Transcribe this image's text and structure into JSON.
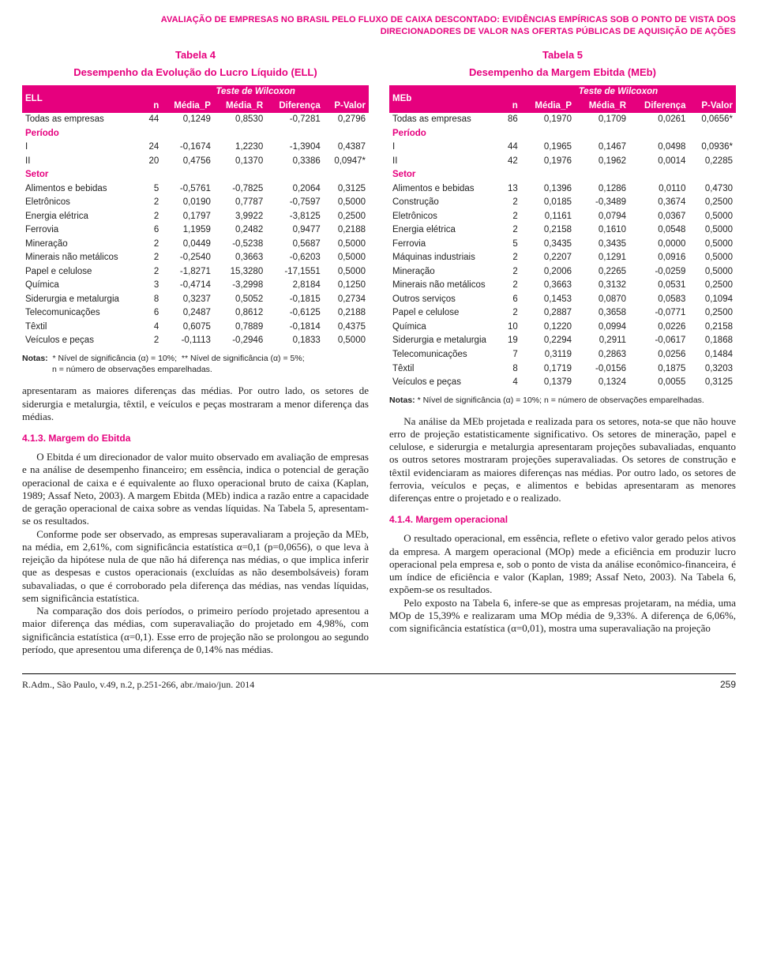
{
  "colors": {
    "accent": "#e6007e",
    "text": "#222",
    "bg": "#fff"
  },
  "header": {
    "line1": "AVALIAÇÃO DE EMPRESAS NO BRASIL PELO FLUXO DE CAIXA DESCONTADO: EVIDÊNCIAS EMPÍRICAS SOB O PONTO DE VISTA DOS",
    "line2": "DIRECIONADORES DE VALOR NAS OFERTAS PÚBLICAS DE AQUISIÇÃO DE AÇÕES"
  },
  "tab4": {
    "tabela": "Tabela 4",
    "title": "Desempenho da Evolução do Lucro Líquido (ELL)",
    "metric": "ELL",
    "wilcoxon": "Teste de Wilcoxon",
    "cols": {
      "n": "n",
      "mp": "Média_P",
      "mr": "Média_R",
      "dif": "Diferença",
      "pv": "P-Valor"
    },
    "rows": [
      {
        "label": "Todas as empresas",
        "n": "44",
        "mp": "0,1249",
        "mr": "0,8530",
        "dif": "-0,7281",
        "pv": "0,2796"
      },
      {
        "section": "Período"
      },
      {
        "label": "I",
        "n": "24",
        "mp": "-0,1674",
        "mr": "1,2230",
        "dif": "-1,3904",
        "pv": "0,4387"
      },
      {
        "label": "II",
        "n": "20",
        "mp": "0,4756",
        "mr": "0,1370",
        "dif": "0,3386",
        "pv": "0,0947*"
      },
      {
        "section": "Setor"
      },
      {
        "label": "Alimentos e bebidas",
        "n": "5",
        "mp": "-0,5761",
        "mr": "-0,7825",
        "dif": "0,2064",
        "pv": "0,3125"
      },
      {
        "label": "Eletrônicos",
        "n": "2",
        "mp": "0,0190",
        "mr": "0,7787",
        "dif": "-0,7597",
        "pv": "0,5000"
      },
      {
        "label": "Energia elétrica",
        "n": "2",
        "mp": "0,1797",
        "mr": "3,9922",
        "dif": "-3,8125",
        "pv": "0,2500"
      },
      {
        "label": "Ferrovia",
        "n": "6",
        "mp": "1,1959",
        "mr": "0,2482",
        "dif": "0,9477",
        "pv": "0,2188"
      },
      {
        "label": "Mineração",
        "n": "2",
        "mp": "0,0449",
        "mr": "-0,5238",
        "dif": "0,5687",
        "pv": "0,5000"
      },
      {
        "label": "Minerais não metálicos",
        "n": "2",
        "mp": "-0,2540",
        "mr": "0,3663",
        "dif": "-0,6203",
        "pv": "0,5000"
      },
      {
        "label": "Papel e celulose",
        "n": "2",
        "mp": "-1,8271",
        "mr": "15,3280",
        "dif": "-17,1551",
        "pv": "0,5000"
      },
      {
        "label": "Química",
        "n": "3",
        "mp": "-0,4714",
        "mr": "-3,2998",
        "dif": "2,8184",
        "pv": "0,1250"
      },
      {
        "label": "Siderurgia e metalurgia",
        "n": "8",
        "mp": "0,3237",
        "mr": "0,5052",
        "dif": "-0,1815",
        "pv": "0,2734"
      },
      {
        "label": "Telecomunicações",
        "n": "6",
        "mp": "0,2487",
        "mr": "0,8612",
        "dif": "-0,6125",
        "pv": "0,2188"
      },
      {
        "label": "Têxtil",
        "n": "4",
        "mp": "0,6075",
        "mr": "0,7889",
        "dif": "-0,1814",
        "pv": "0,4375"
      },
      {
        "label": "Veículos e peças",
        "n": "2",
        "mp": "-0,1113",
        "mr": "-0,2946",
        "dif": "0,1833",
        "pv": "0,5000"
      }
    ],
    "notas1": "Notas:  * Nível de significância (α) = 10%;  ** Nível de significância (α) = 5%;",
    "notas2": "n = número de observações emparelhadas."
  },
  "tab5": {
    "tabela": "Tabela 5",
    "title": "Desempenho da Margem Ebitda (MEb)",
    "metric": "MEb",
    "wilcoxon": "Teste de Wilcoxon",
    "cols": {
      "n": "n",
      "mp": "Média_P",
      "mr": "Média_R",
      "dif": "Diferença",
      "pv": "P-Valor"
    },
    "rows": [
      {
        "label": "Todas as empresas",
        "n": "86",
        "mp": "0,1970",
        "mr": "0,1709",
        "dif": "0,0261",
        "pv": "0,0656*"
      },
      {
        "section": "Período"
      },
      {
        "label": "I",
        "n": "44",
        "mp": "0,1965",
        "mr": "0,1467",
        "dif": "0,0498",
        "pv": "0,0936*"
      },
      {
        "label": "II",
        "n": "42",
        "mp": "0,1976",
        "mr": "0,1962",
        "dif": "0,0014",
        "pv": "0,2285"
      },
      {
        "section": "Setor"
      },
      {
        "label": "Alimentos e bebidas",
        "n": "13",
        "mp": "0,1396",
        "mr": "0,1286",
        "dif": "0,0110",
        "pv": "0,4730"
      },
      {
        "label": "Construção",
        "n": "2",
        "mp": "0,0185",
        "mr": "-0,3489",
        "dif": "0,3674",
        "pv": "0,2500"
      },
      {
        "label": "Eletrônicos",
        "n": "2",
        "mp": "0,1161",
        "mr": "0,0794",
        "dif": "0,0367",
        "pv": "0,5000"
      },
      {
        "label": "Energia elétrica",
        "n": "2",
        "mp": "0,2158",
        "mr": "0,1610",
        "dif": "0,0548",
        "pv": "0,5000"
      },
      {
        "label": "Ferrovia",
        "n": "5",
        "mp": "0,3435",
        "mr": "0,3435",
        "dif": "0,0000",
        "pv": "0,5000"
      },
      {
        "label": "Máquinas industriais",
        "n": "2",
        "mp": "0,2207",
        "mr": "0,1291",
        "dif": "0,0916",
        "pv": "0,5000"
      },
      {
        "label": "Mineração",
        "n": "2",
        "mp": "0,2006",
        "mr": "0,2265",
        "dif": "-0,0259",
        "pv": "0,5000"
      },
      {
        "label": "Minerais não metálicos",
        "multiline": true,
        "n": "2",
        "mp": "0,3663",
        "mr": "0,3132",
        "dif": "0,0531",
        "pv": "0,2500"
      },
      {
        "label": "Outros serviços",
        "n": "6",
        "mp": "0,1453",
        "mr": "0,0870",
        "dif": "0,0583",
        "pv": "0,1094"
      },
      {
        "label": "Papel e celulose",
        "n": "2",
        "mp": "0,2887",
        "mr": "0,3658",
        "dif": "-0,0771",
        "pv": "0,2500"
      },
      {
        "label": "Química",
        "n": "10",
        "mp": "0,1220",
        "mr": "0,0994",
        "dif": "0,0226",
        "pv": "0,2158"
      },
      {
        "label": "Siderurgia e metalurgia",
        "multiline": true,
        "n": "19",
        "mp": "0,2294",
        "mr": "0,2911",
        "dif": "-0,0617",
        "pv": "0,1868"
      },
      {
        "label": "Telecomunicações",
        "n": "7",
        "mp": "0,3119",
        "mr": "0,2863",
        "dif": "0,0256",
        "pv": "0,1484"
      },
      {
        "label": "Têxtil",
        "n": "8",
        "mp": "0,1719",
        "mr": "-0,0156",
        "dif": "0,1875",
        "pv": "0,3203"
      },
      {
        "label": "Veículos e peças",
        "n": "4",
        "mp": "0,1379",
        "mr": "0,1324",
        "dif": "0,0055",
        "pv": "0,3125"
      }
    ],
    "notas": "Notas: * Nível de significância (α) = 10%; n = número de observações emparelhadas."
  },
  "left_text": {
    "p1": "apresentaram as maiores diferenças das médias. Por outro lado, os setores de siderurgia e metalurgia, têxtil, e veículos e peças mostraram a menor diferença das médias.",
    "h": "4.1.3. Margem do Ebitda",
    "p2": "O Ebitda é um direcionador de valor muito observado em avaliação de empresas e na análise de desempenho financeiro; em essência, indica o potencial de geração operacional de caixa e é equivalente ao fluxo operacional bruto de caixa (Kaplan, 1989; Assaf Neto, 2003). A margem Ebitda (MEb) indica a razão entre a capacidade de geração operacional de caixa sobre as vendas líquidas. Na Tabela 5, apresentam-se os resultados.",
    "p3": "Conforme pode ser observado, as empresas superavaliaram a projeção da MEb, na média, em 2,61%, com significância estatística α=0,1 (p=0,0656), o que leva à rejeição da hipótese nula de que não há diferença nas médias, o que implica inferir que as despesas e custos operacionais (excluídas as não desembolsáveis) foram subavaliadas, o que é corroborado pela diferença das médias, nas vendas líquidas, sem significância estatística.",
    "p4": "Na comparação dos dois períodos, o primeiro período projetado apresentou a maior diferença das médias, com superavaliação do projetado em 4,98%, com significância estatística (α=0,1). Esse erro de projeção não se prolongou ao segundo período, que apresentou uma diferença de 0,14% nas médias."
  },
  "right_text": {
    "p1": "Na análise da MEb projetada e realizada para os setores, nota-se que não houve erro de projeção estatisticamente significativo. Os setores de mineração, papel e celulose, e siderurgia e metalurgia apresentaram projeções subavaliadas, enquanto os outros setores mostraram projeções superavaliadas. Os setores de construção e têxtil evidenciaram as maiores diferenças nas médias. Por outro lado, os setores de ferrovia, veículos e peças, e alimentos e bebidas apresentaram as menores diferenças entre o projetado e o realizado.",
    "h": "4.1.4. Margem operacional",
    "p2": "O resultado operacional, em essência, reflete o efetivo valor gerado pelos ativos da empresa. A margem operacional (MOp) mede a eficiência em produzir lucro operacional pela empresa e, sob o ponto de vista da análise econômico-financeira, é um índice de eficiência e valor (Kaplan, 1989; Assaf Neto, 2003). Na Tabela 6, expõem-se os resultados.",
    "p3": "Pelo exposto na Tabela 6, infere-se que as empresas projetaram, na média, uma MOp de 15,39% e realizaram uma MOp média de 9,33%. A diferença de 6,06%, com significância estatística (α=0,01), mostra uma superavaliação na projeção"
  },
  "footer": {
    "left": "R.Adm., São Paulo, v.49, n.2, p.251-266, abr./maio/jun. 2014",
    "page": "259"
  }
}
